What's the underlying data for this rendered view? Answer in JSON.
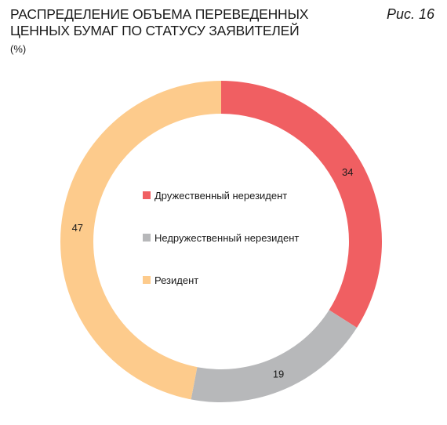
{
  "header": {
    "title": "Распределение объема переведенных ценных бумаг по статусу заявителей",
    "unit": "(%)",
    "figure_label": "Рис. 16"
  },
  "chart_data": {
    "type": "pie",
    "donut": true,
    "title": "Распределение объема переведенных ценных бумаг по статусу заявителей",
    "unit": "%",
    "legend_position": "center",
    "categories": [
      "Дружественный нерезидент",
      "Недружественный нерезидент",
      "Резидент"
    ],
    "values": [
      34,
      19,
      47
    ],
    "colors": [
      "#f05f62",
      "#b7b8ba",
      "#fdcb8c"
    ],
    "data_labels": [
      "34",
      "19",
      "47"
    ]
  },
  "legend": {
    "items": [
      {
        "label": "Дружественный нерезидент",
        "color": "#f05f62"
      },
      {
        "label": "Недружественный нерезидент",
        "color": "#b7b8ba"
      },
      {
        "label": "Резидент",
        "color": "#fdcb8c"
      }
    ]
  }
}
